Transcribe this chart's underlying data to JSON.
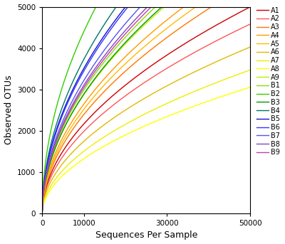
{
  "title": "",
  "xlabel": "Sequences Per Sample",
  "ylabel": "Observed OTUs",
  "xlim": [
    0,
    50000
  ],
  "ylim": [
    0,
    5000
  ],
  "xticks": [
    0,
    10000,
    30000,
    50000
  ],
  "yticks": [
    0,
    1000,
    2000,
    3000,
    4000,
    5000
  ],
  "series": [
    {
      "label": "A1",
      "color": "#CC0000",
      "a": 18.0,
      "b": 0.52
    },
    {
      "label": "A2",
      "color": "#FF5555",
      "a": 16.5,
      "b": 0.52
    },
    {
      "label": "A3",
      "color": "#FF7700",
      "a": 19.0,
      "b": 0.525
    },
    {
      "label": "A4",
      "color": "#FF9900",
      "a": 22.0,
      "b": 0.52
    },
    {
      "label": "A5",
      "color": "#FFBB00",
      "a": 20.0,
      "b": 0.525
    },
    {
      "label": "A6",
      "color": "#DDBB00",
      "a": 14.5,
      "b": 0.52
    },
    {
      "label": "A7",
      "color": "#EEEE00",
      "a": 12.5,
      "b": 0.52
    },
    {
      "label": "A8",
      "color": "#FFFF00",
      "a": 11.0,
      "b": 0.52
    },
    {
      "label": "A9",
      "color": "#BBEE00",
      "a": 25.0,
      "b": 0.515
    },
    {
      "label": "B1",
      "color": "#88DD00",
      "a": 26.0,
      "b": 0.515
    },
    {
      "label": "B2",
      "color": "#33CC00",
      "a": 44.0,
      "b": 0.5
    },
    {
      "label": "B3",
      "color": "#009900",
      "a": 24.0,
      "b": 0.52
    },
    {
      "label": "B4",
      "color": "#007766",
      "a": 34.0,
      "b": 0.51
    },
    {
      "label": "B5",
      "color": "#1111CC",
      "a": 32.0,
      "b": 0.51
    },
    {
      "label": "B6",
      "color": "#3333FF",
      "a": 30.0,
      "b": 0.515
    },
    {
      "label": "B7",
      "color": "#5555EE",
      "a": 28.0,
      "b": 0.515
    },
    {
      "label": "B8",
      "color": "#8844BB",
      "a": 27.0,
      "b": 0.515
    },
    {
      "label": "B9",
      "color": "#BB44AA",
      "a": 26.5,
      "b": 0.515
    }
  ],
  "n_points": 300,
  "max_x": 50000,
  "figsize": [
    4.0,
    3.43
  ],
  "dpi": 100
}
